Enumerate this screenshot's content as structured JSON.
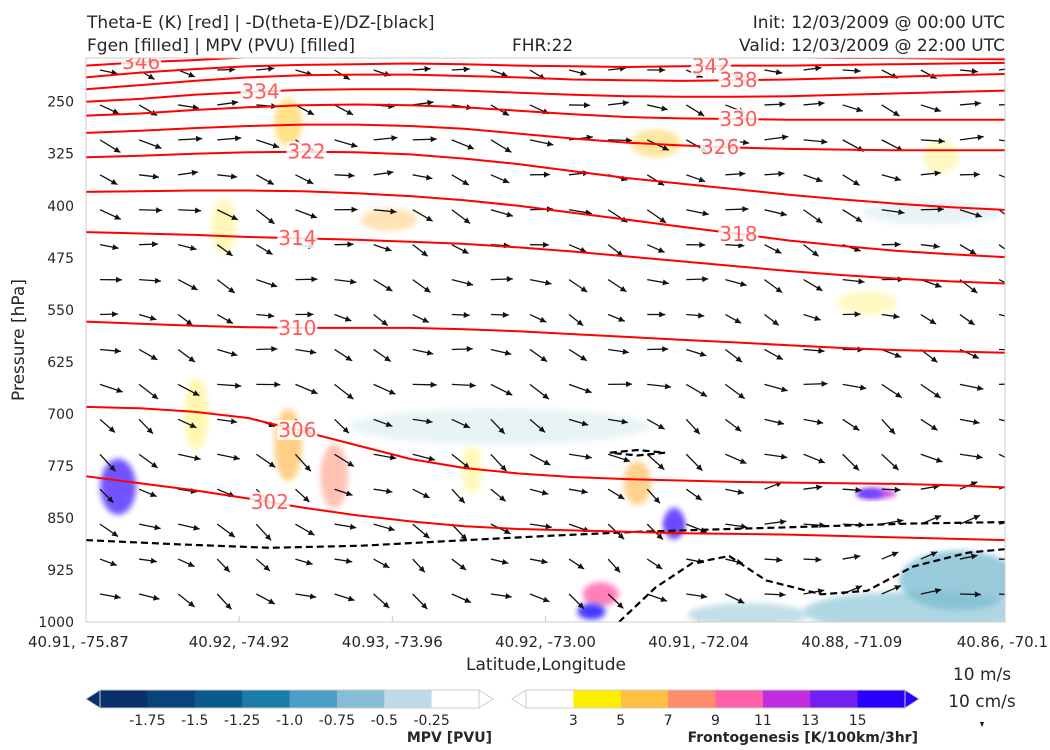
{
  "titles": {
    "left_line1": "Theta-E (K) [red] | -D(theta-E)/DZ-[black]",
    "left_line2": "Fgen [filled] | MPV (PVU) [filled]",
    "center": "FHR:22",
    "right_line1": "Init: 12/03/2009 @ 00:00 UTC",
    "right_line2": "Valid: 12/03/2009 @ 22:00 UTC"
  },
  "chart_data": {
    "type": "cross-section",
    "xlabel": "Latitude,Longitude",
    "ylabel": "Pressure [hPa]",
    "x_ticks": [
      "40.91, -75.87",
      "40.92, -74.92",
      "40.93, -73.96",
      "40.92, -73.00",
      "40.91, -72.04",
      "40.88, -71.09",
      "40.86, -70.1"
    ],
    "y_ticks": [
      250,
      325,
      400,
      475,
      550,
      625,
      700,
      775,
      850,
      925,
      1000
    ],
    "ylim": [
      1000,
      187
    ],
    "y_scale": "linear-inverted",
    "theta_e_contours": [
      {
        "level": 346,
        "label": "346",
        "p": [
          198,
          193,
          190,
          186,
          184,
          182,
          181,
          180,
          181,
          182,
          183,
          184,
          185,
          186,
          187,
          187,
          188,
          189
        ]
      },
      {
        "level": 342,
        "label": "342",
        "p": [
          215,
          208,
          203,
          199,
          197,
          196,
          195,
          196,
          198,
          199,
          200,
          199,
          198,
          198,
          197,
          196,
          195,
          194
        ]
      },
      {
        "level": 338,
        "label": "338",
        "p": [
          232,
          226,
          220,
          215,
          212,
          211,
          211,
          213,
          215,
          218,
          219,
          220,
          219,
          218,
          216,
          214,
          212,
          210
        ]
      },
      {
        "level": 334,
        "label": "334",
        "p": [
          250,
          246,
          240,
          236,
          233,
          232,
          232,
          234,
          237,
          240,
          242,
          243,
          243,
          242,
          240,
          238,
          236,
          234
        ]
      },
      {
        "level": 330,
        "label": "330",
        "p": [
          270,
          267,
          262,
          258,
          255,
          254,
          255,
          258,
          263,
          268,
          272,
          274,
          275,
          276,
          276,
          276,
          276,
          276
        ]
      },
      {
        "level": 326,
        "label": "326",
        "p": [
          295,
          292,
          288,
          285,
          283,
          283,
          285,
          289,
          296,
          303,
          309,
          313,
          316,
          318,
          319,
          320,
          320,
          320
        ]
      },
      {
        "level": 322,
        "label": "322",
        "p": [
          330,
          328,
          325,
          323,
          322,
          323,
          326,
          332,
          340,
          350,
          360,
          368,
          376,
          384,
          391,
          397,
          402,
          406
        ]
      },
      {
        "level": 318,
        "label": "318",
        "p": [
          380,
          379,
          378,
          378,
          379,
          382,
          386,
          392,
          400,
          410,
          420,
          430,
          440,
          450,
          458,
          465,
          470,
          474
        ]
      },
      {
        "level": 314,
        "label": "314",
        "p": [
          438,
          440,
          442,
          445,
          447,
          449,
          452,
          455,
          460,
          466,
          473,
          480,
          487,
          494,
          500,
          505,
          509,
          512
        ]
      },
      {
        "level": 310,
        "label": "310",
        "p": [
          567,
          570,
          573,
          575,
          576,
          576,
          576,
          578,
          581,
          585,
          589,
          593,
          597,
          601,
          605,
          608,
          610,
          612
        ]
      },
      {
        "level": 306,
        "label": "306",
        "p": [
          690,
          692,
          697,
          706,
          725,
          745,
          765,
          778,
          786,
          791,
          794,
          796,
          798,
          799,
          800,
          801,
          803,
          806
        ]
      },
      {
        "level": 302,
        "label": "302",
        "p": [
          790,
          800,
          810,
          822,
          835,
          846,
          855,
          862,
          866,
          868,
          870,
          872,
          873,
          874,
          876,
          878,
          880,
          882
        ]
      }
    ],
    "legends": [
      {
        "label": "MPV [PVU]",
        "ticks": [
          "-1.75",
          "-1.5",
          "-1.25",
          "-1.0",
          "-0.75",
          "-0.5",
          "-0.25"
        ],
        "colors": [
          "#08306b",
          "#08447a",
          "#0b5a8c",
          "#1a7aa8",
          "#4a9dc4",
          "#86bdd6",
          "#bcdbe6",
          "#ffffff"
        ]
      },
      {
        "label": "Frontogenesis [K/100km/3hr]",
        "ticks": [
          "3",
          "5",
          "7",
          "9",
          "11",
          "13",
          "15"
        ],
        "colors": [
          "#ffffff",
          "#ffee00",
          "#ffc040",
          "#ff8c6a",
          "#ff60a8",
          "#c02ee0",
          "#7020f0",
          "#2800ff"
        ]
      }
    ],
    "wind_key": {
      "speed": "10 m/s",
      "vertical": "10 cm/s"
    }
  }
}
